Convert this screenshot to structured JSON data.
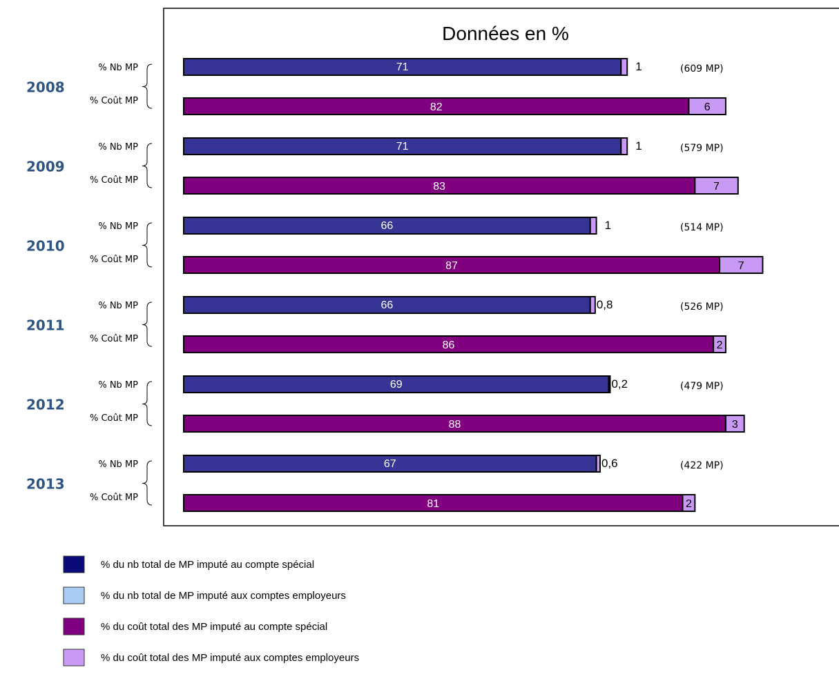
{
  "colors": {
    "nb_special": "#363595",
    "nb_employeurs": "#a9cdf2",
    "cout_special": "#800080",
    "cout_employeurs": "#c899f5",
    "legend_nb_special": "#0a0a78",
    "year_label": "#2f5584"
  },
  "chart_data": {
    "type": "bar",
    "orientation": "horizontal",
    "stacked": true,
    "title": "Données en %",
    "row_labels": {
      "nb": "% Nb MP",
      "cout": "% Coût MP"
    },
    "groups": [
      {
        "year": "2008",
        "nb_special": 71,
        "nb_special_label": "71",
        "nb_employeurs": 1,
        "nb_employeurs_label": "1",
        "cout_special": 82,
        "cout_special_label": "82",
        "cout_employeurs": 6,
        "cout_employeurs_label": "6",
        "total": "(609 MP)"
      },
      {
        "year": "2009",
        "nb_special": 71,
        "nb_special_label": "71",
        "nb_employeurs": 1,
        "nb_employeurs_label": "1",
        "cout_special": 83,
        "cout_special_label": "83",
        "cout_employeurs": 7,
        "cout_employeurs_label": "7",
        "total": "(579 MP)"
      },
      {
        "year": "2010",
        "nb_special": 66,
        "nb_special_label": "66",
        "nb_employeurs": 1,
        "nb_employeurs_label": "1",
        "cout_special": 87,
        "cout_special_label": "87",
        "cout_employeurs": 7,
        "cout_employeurs_label": "7",
        "total": "(514 MP)"
      },
      {
        "year": "2011",
        "nb_special": 66,
        "nb_special_label": "66",
        "nb_employeurs": 0.8,
        "nb_employeurs_label": "0,8",
        "cout_special": 86,
        "cout_special_label": "86",
        "cout_employeurs": 2,
        "cout_employeurs_label": "2",
        "total": "(526 MP)"
      },
      {
        "year": "2012",
        "nb_special": 69,
        "nb_special_label": "69",
        "nb_employeurs": 0.2,
        "nb_employeurs_label": "0,2",
        "cout_special": 88,
        "cout_special_label": "88",
        "cout_employeurs": 3,
        "cout_employeurs_label": "3",
        "total": "(479 MP)"
      },
      {
        "year": "2013",
        "nb_special": 67,
        "nb_special_label": "67",
        "nb_employeurs": 0.6,
        "nb_employeurs_label": "0,6",
        "cout_special": 81,
        "cout_special_label": "81",
        "cout_employeurs": 2,
        "cout_employeurs_label": "2",
        "total": "(422 MP)"
      }
    ],
    "legend": [
      {
        "key": "nb_special",
        "label": "% du nb total de MP imputé au compte spécial"
      },
      {
        "key": "nb_employeurs",
        "label": "% du nb total de MP imputé aux comptes employeurs"
      },
      {
        "key": "cout_special",
        "label": "% du coût total des MP imputé au compte spécial"
      },
      {
        "key": "cout_employeurs",
        "label": "% du coût total des MP imputé aux comptes employeurs"
      }
    ],
    "legend_position": "bottom-left",
    "grid": false
  }
}
